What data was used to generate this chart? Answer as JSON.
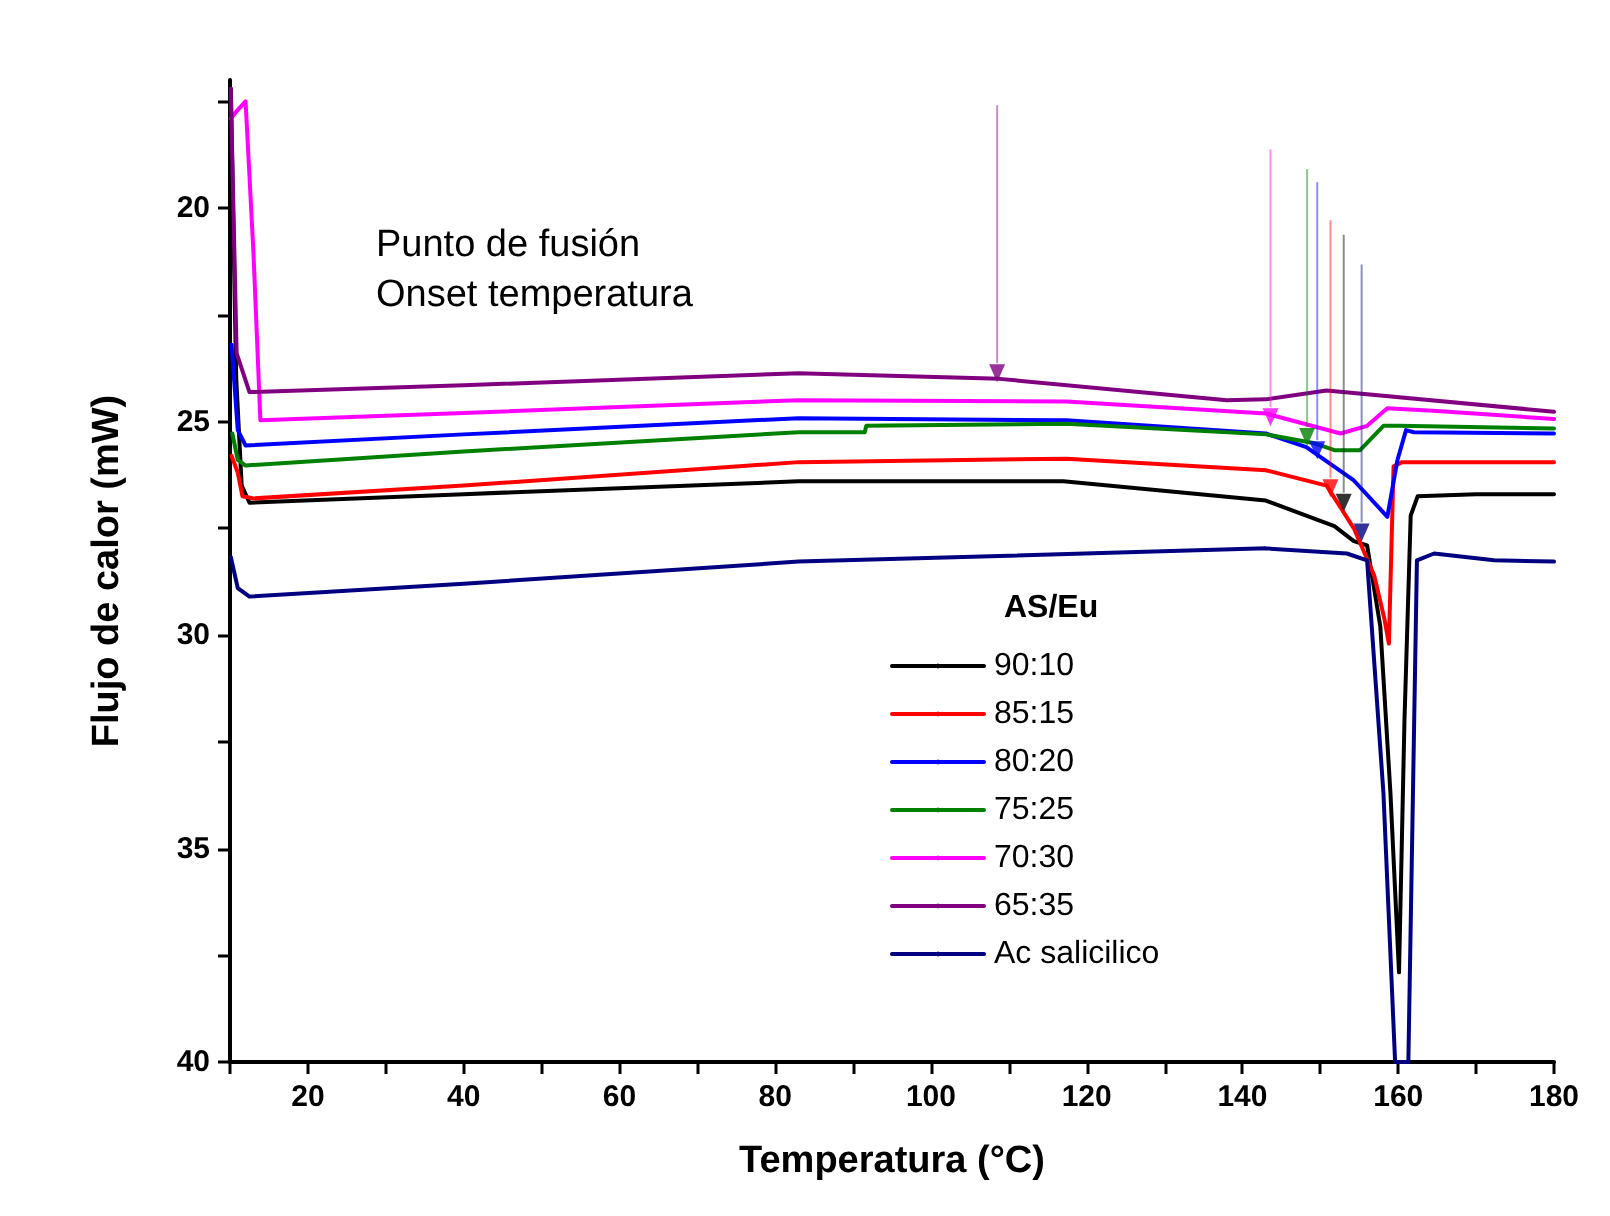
{
  "chart_data": {
    "type": "line",
    "xlabel": "Temperatura (°C)",
    "ylabel": "Flujo de calor (mW)",
    "legend_title": "AS/Eu",
    "legend": "bottom",
    "grid": false,
    "marker": "none",
    "line_style": "solid",
    "xlim": [
      10,
      180
    ],
    "xticks": [
      {
        "value": 10,
        "label": null
      },
      20,
      {
        "value": 30,
        "label": null
      },
      40,
      {
        "value": 50,
        "label": null
      },
      60,
      {
        "value": 70,
        "label": null
      },
      80,
      {
        "value": 90,
        "label": null
      },
      100,
      {
        "value": 110,
        "label": null
      },
      120,
      {
        "value": 130,
        "label": null
      },
      140,
      {
        "value": 150,
        "label": null
      },
      160,
      {
        "value": 170,
        "label": null
      },
      180
    ],
    "ylim": [
      40,
      17
    ],
    "yticks": [
      {
        "value": 17.5,
        "label": null
      },
      20,
      {
        "value": 22.5,
        "label": null
      },
      25,
      {
        "value": 27.5,
        "label": null
      },
      30,
      {
        "value": 32.5,
        "label": null
      },
      35,
      {
        "value": 37.5,
        "label": null
      },
      40
    ],
    "annotations": [
      "Punto de fusión",
      "Onset temperatura"
    ],
    "series": [
      {
        "type": "scatter",
        "marker": "triangle",
        "x": [
          153,
          151.3,
          149.6,
          148.3,
          143.6,
          108.5,
          155.3
        ],
        "values": [
          26.9,
          26.56,
          25.67,
          25.36,
          24.9,
          23.87,
          27.6
        ],
        "colors": [
          "#000000",
          "#ff0000",
          "#0000ff",
          "#008000",
          "#ff00ff",
          "#800080",
          "#000080"
        ]
      },
      {
        "name": "90:10",
        "color": "#000000",
        "x": [
          10.1,
          10.8,
          11.5,
          12.5,
          40,
          83,
          117,
          143,
          151.8,
          154.3,
          156,
          157.7,
          159,
          160.1,
          160.8,
          161.6,
          162.5,
          170,
          180
        ],
        "values": [
          17.2,
          24,
          26.5,
          26.9,
          26.7,
          26.4,
          26.4,
          26.85,
          27.45,
          27.8,
          27.9,
          29.8,
          33.7,
          37.9,
          32,
          27.2,
          26.75,
          26.7,
          26.7
        ]
      },
      {
        "name": "85:15",
        "color": "#ff0000",
        "x": [
          10.2,
          11,
          11.6,
          13,
          40,
          83,
          117.4,
          143,
          150.8,
          154.3,
          156.9,
          158.2,
          158.8,
          159.4,
          160.5,
          180
        ],
        "values": [
          25.8,
          26.2,
          26.75,
          26.8,
          26.5,
          25.95,
          25.87,
          26.14,
          26.5,
          27.5,
          28.6,
          29.6,
          30.2,
          26.05,
          25.95,
          25.95
        ]
      },
      {
        "name": "80:20",
        "color": "#0000ff",
        "x": [
          10.2,
          11,
          12,
          40,
          83,
          117.4,
          143,
          148.2,
          154.3,
          158.6,
          159.9,
          161,
          162,
          180
        ],
        "values": [
          23.2,
          25.2,
          25.56,
          25.3,
          24.92,
          24.97,
          25.28,
          25.6,
          26.38,
          27.23,
          25.9,
          25.2,
          25.25,
          25.28
        ]
      },
      {
        "name": "75:25",
        "color": "#008000",
        "x": [
          10.3,
          11,
          12,
          40,
          83,
          91.5,
          91.7,
          117.4,
          143,
          149.1,
          151.8,
          155.1,
          156,
          158.1,
          160,
          180
        ],
        "values": [
          25.28,
          25.9,
          26.03,
          25.7,
          25.25,
          25.25,
          25.1,
          25.05,
          25.3,
          25.5,
          25.67,
          25.67,
          25.5,
          25.1,
          25.1,
          25.16
        ]
      },
      {
        "name": "70:30",
        "color": "#ff00ff",
        "x": [
          10.1,
          11,
          12,
          13,
          13.9,
          40,
          83,
          117.4,
          143,
          152.6,
          156,
          158.6,
          165,
          180
        ],
        "values": [
          17.9,
          17.7,
          17.5,
          21,
          24.97,
          24.8,
          24.5,
          24.53,
          24.81,
          25.28,
          25.1,
          24.69,
          24.75,
          24.94
        ]
      },
      {
        "name": "65:35",
        "color": "#800080",
        "x": [
          10.1,
          10.85,
          12.5,
          40,
          83,
          108.8,
          138,
          143,
          150.8,
          156,
          180
        ],
        "values": [
          17.2,
          23.4,
          24.31,
          24.15,
          23.87,
          24.0,
          24.5,
          24.48,
          24.27,
          24.36,
          24.77
        ]
      },
      {
        "name": "Ac salicilico",
        "color": "#000080",
        "x": [
          10.1,
          11,
          12.5,
          40,
          83,
          143,
          153.4,
          156,
          158.1,
          159.6,
          161.3,
          162.4,
          164.6,
          172.3,
          180
        ],
        "values": [
          28.17,
          28.9,
          29.1,
          28.8,
          28.28,
          27.97,
          28.09,
          28.25,
          33.7,
          40,
          40,
          28.25,
          28.09,
          28.25,
          28.28
        ]
      }
    ]
  }
}
